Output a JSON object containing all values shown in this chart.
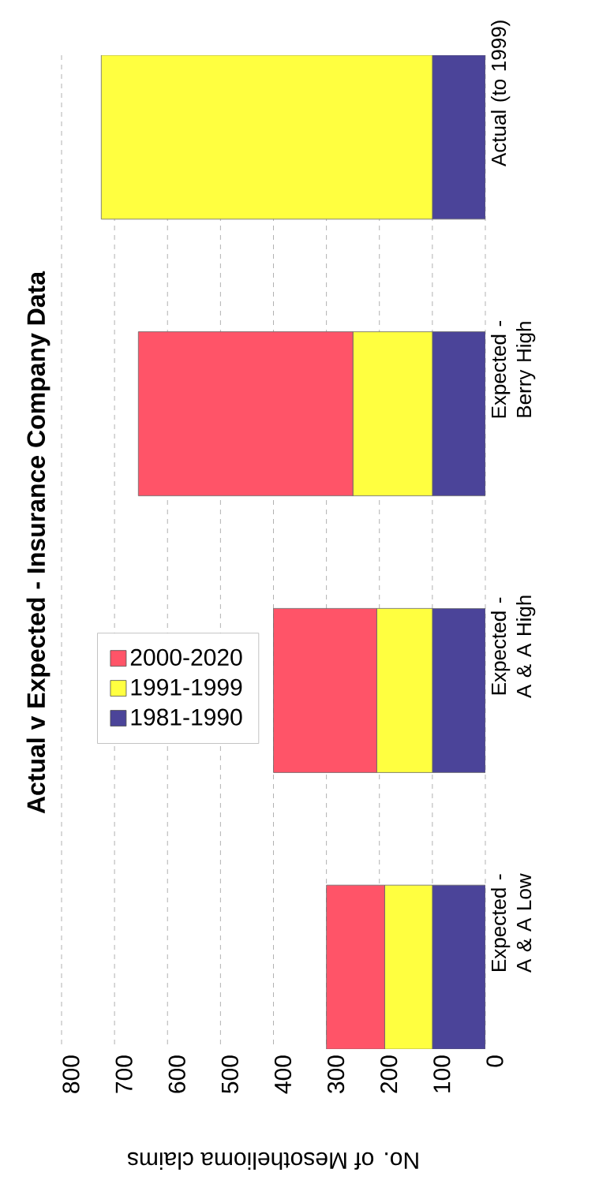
{
  "chart_data": {
    "type": "bar",
    "orientation": "horizontal",
    "title": "Actual v Expected - Insurance Company Data",
    "xlabel": "No. of Mesothelioma claims",
    "categories": [
      "Actual (to 1999)",
      "Expected - Berry High",
      "Expected - A & A High",
      "Expected - A & A Low"
    ],
    "stacked": true,
    "series": [
      {
        "name": "1981-1990",
        "color": "#4b4499",
        "values": [
          100,
          100,
          100,
          100
        ]
      },
      {
        "name": "1991-1999",
        "color": "#ffff40",
        "values": [
          625,
          150,
          105,
          90
        ]
      },
      {
        "name": "2000-2020",
        "color": "#ff5468",
        "values": [
          null,
          405,
          195,
          110
        ]
      }
    ],
    "xlim": [
      800,
      0
    ],
    "xticks": [
      0,
      100,
      200,
      300,
      400,
      500,
      600,
      700,
      800
    ],
    "grid": "x",
    "legend": "left"
  }
}
